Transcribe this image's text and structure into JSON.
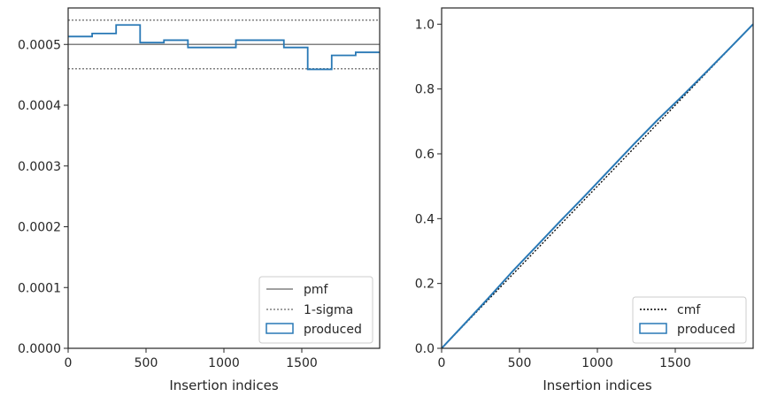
{
  "chart_data": [
    {
      "type": "line",
      "xlabel": "Insertion indices",
      "ylabel": "",
      "title": "",
      "xlim": [
        0,
        2000
      ],
      "ylim": [
        0,
        0.00056
      ],
      "xticks": [
        0,
        500,
        1000,
        1500
      ],
      "xtick_labels": [
        "0",
        "500",
        "1000",
        "1500"
      ],
      "yticks": [
        0,
        0.0001,
        0.0002,
        0.0003,
        0.0004,
        0.0005
      ],
      "ytick_labels": [
        "0.0000",
        "0.0001",
        "0.0002",
        "0.0003",
        "0.0004",
        "0.0005"
      ],
      "grid": false,
      "legend_position": "lower-right",
      "legend": [
        "pmf",
        "1-sigma",
        "produced"
      ],
      "pmf": 0.0005,
      "sigma_band": [
        0.00046,
        0.00054
      ],
      "produced_hist": {
        "bin_edges": [
          0,
          154,
          308,
          462,
          615,
          769,
          923,
          1077,
          1231,
          1385,
          1538,
          1692,
          1846,
          2000
        ],
        "values": [
          0.000513,
          0.000518,
          0.000532,
          0.000503,
          0.000507,
          0.000495,
          0.000495,
          0.000507,
          0.000507,
          0.000495,
          0.000459,
          0.000482,
          0.000487
        ]
      }
    },
    {
      "type": "line",
      "xlabel": "Insertion indices",
      "ylabel": "",
      "title": "",
      "xlim": [
        0,
        2000
      ],
      "ylim": [
        0,
        1.05
      ],
      "xticks": [
        0,
        500,
        1000,
        1500
      ],
      "xtick_labels": [
        "0",
        "500",
        "1000",
        "1500"
      ],
      "yticks": [
        0,
        0.2,
        0.4,
        0.6,
        0.8,
        1.0
      ],
      "ytick_labels": [
        "0.0",
        "0.2",
        "0.4",
        "0.6",
        "0.8",
        "1.0"
      ],
      "grid": false,
      "legend_position": "lower-right",
      "legend": [
        "cmf",
        "produced"
      ],
      "cmf": {
        "x": [
          0,
          2000
        ],
        "y": [
          0,
          1
        ]
      },
      "produced_cdf": {
        "x": [
          0,
          154,
          308,
          462,
          615,
          769,
          923,
          1077,
          1231,
          1385,
          1538,
          1692,
          1846,
          2000
        ],
        "y": [
          0,
          0.079,
          0.159,
          0.241,
          0.318,
          0.396,
          0.472,
          0.55,
          0.628,
          0.704,
          0.775,
          0.849,
          0.924,
          1.0
        ]
      }
    }
  ],
  "colors": {
    "pmf": "#808080",
    "sigma": "#808080",
    "produced": "#2878b5",
    "cmf": "#000000",
    "axes": "#262626"
  }
}
